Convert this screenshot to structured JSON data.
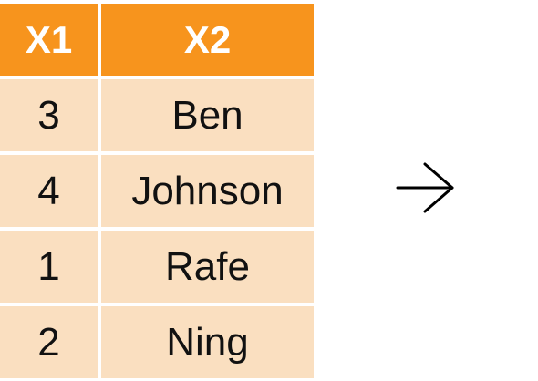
{
  "table": {
    "columns": [
      "X1",
      "X2"
    ],
    "rows": [
      [
        "3",
        "Ben"
      ],
      [
        "4",
        "Johnson"
      ],
      [
        "1",
        "Rafe"
      ],
      [
        "2",
        "Ning"
      ]
    ]
  },
  "arrow_icon": "right-arrow-icon",
  "colors": {
    "header": "#F7941D",
    "body": "#FADFC0",
    "header_text": "#FFFFFF",
    "body_text": "#111111"
  }
}
